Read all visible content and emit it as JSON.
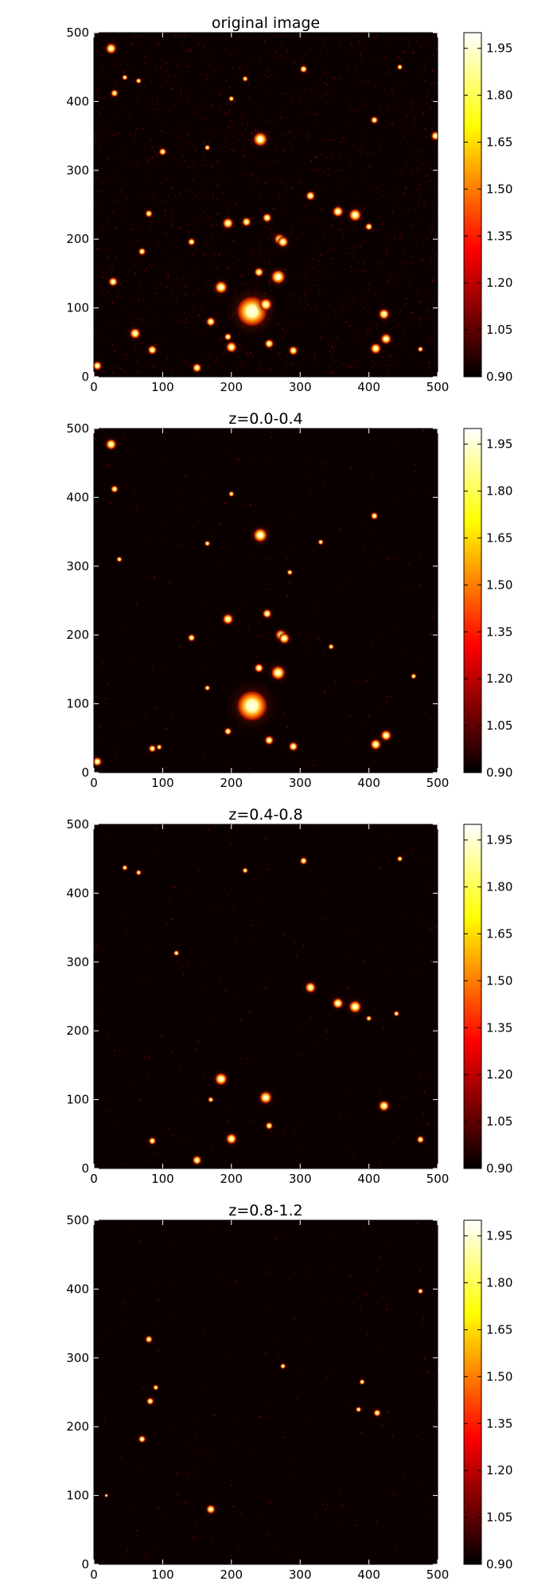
{
  "colors": {
    "background": "#ffffff",
    "axis": "#000000",
    "colormap_low": "#000000",
    "colormap_mid_red": "#ff0000",
    "colormap_mid_yellow": "#ffff00",
    "colormap_high": "#ffffff"
  },
  "chart_data": [
    {
      "type": "heatmap",
      "title": "original image",
      "xlim": [
        0,
        500
      ],
      "ylim": [
        0,
        500
      ],
      "xticks": [
        "0",
        "100",
        "200",
        "300",
        "400",
        "500"
      ],
      "yticks": [
        "0",
        "100",
        "200",
        "300",
        "400",
        "500"
      ],
      "colormap": "hot",
      "colorbar": {
        "range": [
          0.9,
          2.0
        ],
        "ticks": [
          "0.90",
          "1.05",
          "1.20",
          "1.35",
          "1.50",
          "1.65",
          "1.80",
          "1.95"
        ]
      },
      "grid": false,
      "sources": [
        {
          "x": 25,
          "y": 477,
          "r": 6
        },
        {
          "x": 30,
          "y": 412,
          "r": 4
        },
        {
          "x": 45,
          "y": 435,
          "r": 3
        },
        {
          "x": 65,
          "y": 430,
          "r": 3
        },
        {
          "x": 100,
          "y": 327,
          "r": 4
        },
        {
          "x": 80,
          "y": 237,
          "r": 4
        },
        {
          "x": 70,
          "y": 182,
          "r": 4
        },
        {
          "x": 28,
          "y": 138,
          "r": 5
        },
        {
          "x": 60,
          "y": 63,
          "r": 6
        },
        {
          "x": 150,
          "y": 13,
          "r": 5
        },
        {
          "x": 85,
          "y": 39,
          "r": 5
        },
        {
          "x": 5,
          "y": 16,
          "r": 5
        },
        {
          "x": 142,
          "y": 196,
          "r": 4
        },
        {
          "x": 200,
          "y": 404,
          "r": 3
        },
        {
          "x": 220,
          "y": 433,
          "r": 3
        },
        {
          "x": 242,
          "y": 345,
          "r": 8
        },
        {
          "x": 165,
          "y": 333,
          "r": 3
        },
        {
          "x": 195,
          "y": 223,
          "r": 6
        },
        {
          "x": 222,
          "y": 225,
          "r": 5
        },
        {
          "x": 252,
          "y": 231,
          "r": 5
        },
        {
          "x": 270,
          "y": 200,
          "r": 6
        },
        {
          "x": 275,
          "y": 196,
          "r": 6
        },
        {
          "x": 240,
          "y": 152,
          "r": 5
        },
        {
          "x": 268,
          "y": 145,
          "r": 8
        },
        {
          "x": 230,
          "y": 95,
          "r": 18
        },
        {
          "x": 250,
          "y": 105,
          "r": 7
        },
        {
          "x": 185,
          "y": 130,
          "r": 7
        },
        {
          "x": 170,
          "y": 80,
          "r": 5
        },
        {
          "x": 195,
          "y": 58,
          "r": 4
        },
        {
          "x": 200,
          "y": 43,
          "r": 6
        },
        {
          "x": 255,
          "y": 48,
          "r": 5
        },
        {
          "x": 290,
          "y": 38,
          "r": 5
        },
        {
          "x": 305,
          "y": 447,
          "r": 4
        },
        {
          "x": 315,
          "y": 263,
          "r": 5
        },
        {
          "x": 355,
          "y": 240,
          "r": 6
        },
        {
          "x": 380,
          "y": 235,
          "r": 7
        },
        {
          "x": 400,
          "y": 218,
          "r": 4
        },
        {
          "x": 408,
          "y": 373,
          "r": 4
        },
        {
          "x": 422,
          "y": 91,
          "r": 6
        },
        {
          "x": 425,
          "y": 55,
          "r": 6
        },
        {
          "x": 410,
          "y": 41,
          "r": 6
        },
        {
          "x": 497,
          "y": 350,
          "r": 5
        },
        {
          "x": 445,
          "y": 450,
          "r": 3
        },
        {
          "x": 475,
          "y": 40,
          "r": 3
        }
      ]
    },
    {
      "type": "heatmap",
      "title": "z=0.0-0.4",
      "xlim": [
        0,
        500
      ],
      "ylim": [
        0,
        500
      ],
      "xticks": [
        "0",
        "100",
        "200",
        "300",
        "400",
        "500"
      ],
      "yticks": [
        "0",
        "100",
        "200",
        "300",
        "400",
        "500"
      ],
      "colormap": "hot",
      "colorbar": {
        "range": [
          0.9,
          2.0
        ],
        "ticks": [
          "0.90",
          "1.05",
          "1.20",
          "1.35",
          "1.50",
          "1.65",
          "1.80",
          "1.95"
        ]
      },
      "grid": false,
      "sources": [
        {
          "x": 25,
          "y": 477,
          "r": 6
        },
        {
          "x": 30,
          "y": 412,
          "r": 4
        },
        {
          "x": 37,
          "y": 310,
          "r": 3
        },
        {
          "x": 200,
          "y": 405,
          "r": 3
        },
        {
          "x": 242,
          "y": 345,
          "r": 8
        },
        {
          "x": 165,
          "y": 333,
          "r": 3
        },
        {
          "x": 330,
          "y": 335,
          "r": 3
        },
        {
          "x": 408,
          "y": 373,
          "r": 4
        },
        {
          "x": 285,
          "y": 291,
          "r": 3
        },
        {
          "x": 195,
          "y": 223,
          "r": 6
        },
        {
          "x": 252,
          "y": 231,
          "r": 5
        },
        {
          "x": 272,
          "y": 200,
          "r": 6
        },
        {
          "x": 277,
          "y": 195,
          "r": 6
        },
        {
          "x": 142,
          "y": 196,
          "r": 4
        },
        {
          "x": 345,
          "y": 183,
          "r": 3
        },
        {
          "x": 240,
          "y": 152,
          "r": 5
        },
        {
          "x": 268,
          "y": 145,
          "r": 8
        },
        {
          "x": 230,
          "y": 97,
          "r": 18
        },
        {
          "x": 165,
          "y": 123,
          "r": 3
        },
        {
          "x": 195,
          "y": 60,
          "r": 4
        },
        {
          "x": 255,
          "y": 47,
          "r": 5
        },
        {
          "x": 290,
          "y": 38,
          "r": 5
        },
        {
          "x": 410,
          "y": 41,
          "r": 6
        },
        {
          "x": 425,
          "y": 54,
          "r": 6
        },
        {
          "x": 85,
          "y": 35,
          "r": 4
        },
        {
          "x": 95,
          "y": 37,
          "r": 3
        },
        {
          "x": 5,
          "y": 16,
          "r": 5
        },
        {
          "x": 465,
          "y": 140,
          "r": 3
        }
      ]
    },
    {
      "type": "heatmap",
      "title": "z=0.4-0.8",
      "xlim": [
        0,
        500
      ],
      "ylim": [
        0,
        500
      ],
      "xticks": [
        "0",
        "100",
        "200",
        "300",
        "400",
        "500"
      ],
      "yticks": [
        "0",
        "100",
        "200",
        "300",
        "400",
        "500"
      ],
      "colormap": "hot",
      "colorbar": {
        "range": [
          0.9,
          2.0
        ],
        "ticks": [
          "0.90",
          "1.05",
          "1.20",
          "1.35",
          "1.50",
          "1.65",
          "1.80",
          "1.95"
        ]
      },
      "grid": false,
      "sources": [
        {
          "x": 45,
          "y": 437,
          "r": 3
        },
        {
          "x": 65,
          "y": 430,
          "r": 3
        },
        {
          "x": 220,
          "y": 433,
          "r": 3
        },
        {
          "x": 305,
          "y": 447,
          "r": 4
        },
        {
          "x": 445,
          "y": 450,
          "r": 3
        },
        {
          "x": 120,
          "y": 313,
          "r": 3
        },
        {
          "x": 315,
          "y": 263,
          "r": 6
        },
        {
          "x": 355,
          "y": 240,
          "r": 6
        },
        {
          "x": 380,
          "y": 235,
          "r": 7
        },
        {
          "x": 400,
          "y": 218,
          "r": 3
        },
        {
          "x": 440,
          "y": 225,
          "r": 3
        },
        {
          "x": 185,
          "y": 130,
          "r": 7
        },
        {
          "x": 250,
          "y": 103,
          "r": 7
        },
        {
          "x": 170,
          "y": 100,
          "r": 3
        },
        {
          "x": 422,
          "y": 91,
          "r": 6
        },
        {
          "x": 200,
          "y": 43,
          "r": 6
        },
        {
          "x": 85,
          "y": 40,
          "r": 4
        },
        {
          "x": 255,
          "y": 62,
          "r": 4
        },
        {
          "x": 150,
          "y": 12,
          "r": 5
        },
        {
          "x": 475,
          "y": 42,
          "r": 4
        }
      ]
    },
    {
      "type": "heatmap",
      "title": "z=0.8-1.2",
      "xlim": [
        0,
        500
      ],
      "ylim": [
        0,
        500
      ],
      "xticks": [
        "0",
        "100",
        "200",
        "300",
        "400",
        "500"
      ],
      "yticks": [
        "0",
        "100",
        "200",
        "300",
        "400",
        "500"
      ],
      "colormap": "hot",
      "colorbar": {
        "range": [
          0.9,
          2.0
        ],
        "ticks": [
          "0.90",
          "1.05",
          "1.20",
          "1.35",
          "1.50",
          "1.65",
          "1.80",
          "1.95"
        ]
      },
      "grid": false,
      "sources": [
        {
          "x": 80,
          "y": 327,
          "r": 4
        },
        {
          "x": 90,
          "y": 257,
          "r": 3
        },
        {
          "x": 82,
          "y": 237,
          "r": 4
        },
        {
          "x": 70,
          "y": 182,
          "r": 4
        },
        {
          "x": 170,
          "y": 80,
          "r": 5
        },
        {
          "x": 275,
          "y": 288,
          "r": 3
        },
        {
          "x": 390,
          "y": 265,
          "r": 3
        },
        {
          "x": 385,
          "y": 225,
          "r": 3
        },
        {
          "x": 412,
          "y": 220,
          "r": 4
        },
        {
          "x": 475,
          "y": 397,
          "r": 3
        },
        {
          "x": 18,
          "y": 100,
          "r": 2
        }
      ]
    }
  ]
}
